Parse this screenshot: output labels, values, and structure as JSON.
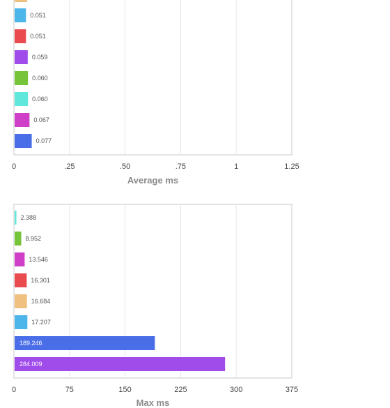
{
  "chart_data": [
    {
      "type": "bar",
      "orientation": "horizontal",
      "xlabel": "Average ms",
      "xlim": [
        0,
        1.25
      ],
      "ticks": [
        "0",
        ".25",
        ".50",
        ".75",
        "1",
        "1.25"
      ],
      "tick_values": [
        0,
        0.25,
        0.5,
        0.75,
        1,
        1.25
      ],
      "grid": true,
      "bars": [
        {
          "label": "0.051",
          "value": 0.051,
          "color": "#4cb6ea"
        },
        {
          "label": "0.051",
          "value": 0.051,
          "color": "#ea4b4e"
        },
        {
          "label": "0.059",
          "value": 0.059,
          "color": "#a04cea"
        },
        {
          "label": "0.060",
          "value": 0.06,
          "color": "#76c43a"
        },
        {
          "label": "0.060",
          "value": 0.06,
          "color": "#5ee8dc"
        },
        {
          "label": "0.067",
          "value": 0.067,
          "color": "#cf3fc8"
        },
        {
          "label": "0.077",
          "value": 0.077,
          "color": "#4a6ee8"
        }
      ],
      "partial_top_bar_color": "#f0c07e"
    },
    {
      "type": "bar",
      "orientation": "horizontal",
      "xlabel": "Max ms",
      "xlim": [
        0,
        375
      ],
      "ticks": [
        "0",
        "75",
        "150",
        "225",
        "300",
        "375"
      ],
      "tick_values": [
        0,
        75,
        150,
        225,
        300,
        375
      ],
      "grid": true,
      "bars": [
        {
          "label": "2.388",
          "value": 2.388,
          "color": "#5ee8dc"
        },
        {
          "label": "8.952",
          "value": 8.952,
          "color": "#76c43a"
        },
        {
          "label": "13.546",
          "value": 13.546,
          "color": "#cf3fc8"
        },
        {
          "label": "16.301",
          "value": 16.301,
          "color": "#ea4b4e"
        },
        {
          "label": "16.684",
          "value": 16.684,
          "color": "#f0c07e"
        },
        {
          "label": "17.207",
          "value": 17.207,
          "color": "#4cb6ea"
        },
        {
          "label": "189.246",
          "value": 189.246,
          "color": "#4a6ee8"
        },
        {
          "label": "284.009",
          "value": 284.009,
          "color": "#a04cea"
        }
      ]
    }
  ]
}
